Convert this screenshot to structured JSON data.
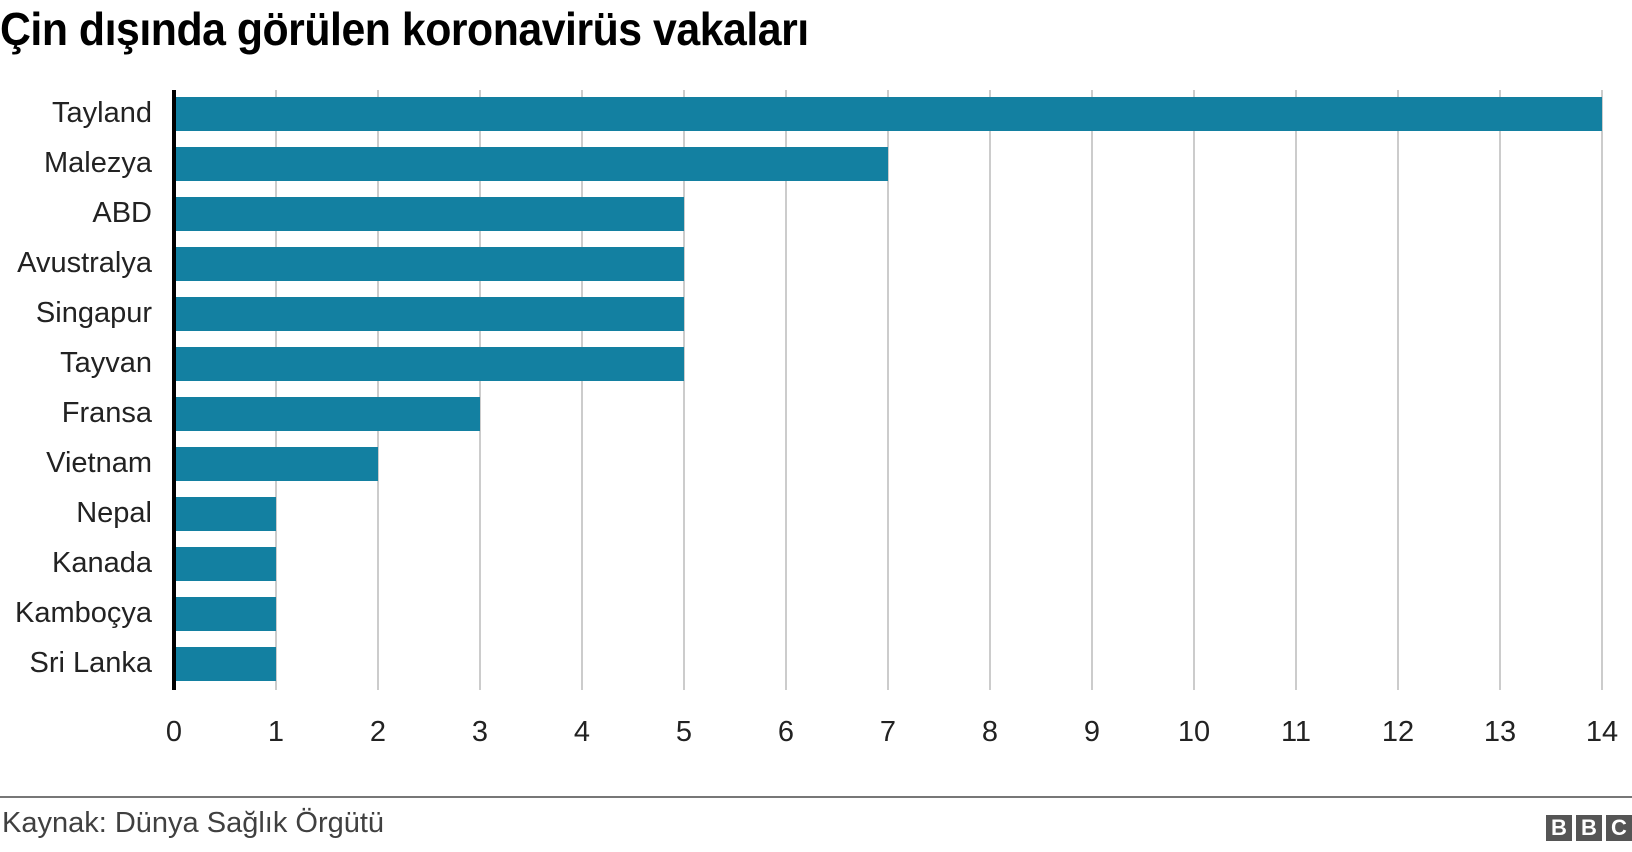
{
  "title": "Çin dışında görülen koronavirüs vakaları",
  "footer": {
    "source": "Kaynak: Dünya Sağlık Örgütü",
    "logo": [
      "B",
      "B",
      "C"
    ]
  },
  "colors": {
    "bar": "#1380a1",
    "grid": "#cccccc",
    "axis": "#000000",
    "footer_rule": "#777777"
  },
  "chart_data": {
    "type": "bar",
    "orientation": "horizontal",
    "title": "Çin dışında görülen koronavirüs vakaları",
    "xlabel": "",
    "ylabel": "",
    "categories": [
      "Tayland",
      "Malezya",
      "ABD",
      "Avustralya",
      "Singapur",
      "Tayvan",
      "Fransa",
      "Vietnam",
      "Nepal",
      "Kanada",
      "Kamboçya",
      "Sri Lanka"
    ],
    "values": [
      14,
      7,
      5,
      5,
      5,
      5,
      3,
      2,
      1,
      1,
      1,
      1
    ],
    "xlim": [
      0,
      14
    ],
    "xticks": [
      "0",
      "1",
      "2",
      "3",
      "4",
      "5",
      "6",
      "7",
      "8",
      "9",
      "10",
      "11",
      "12",
      "13",
      "14"
    ],
    "grid": "vertical",
    "legend": null,
    "source": "Kaynak: Dünya Sağlık Örgütü"
  }
}
